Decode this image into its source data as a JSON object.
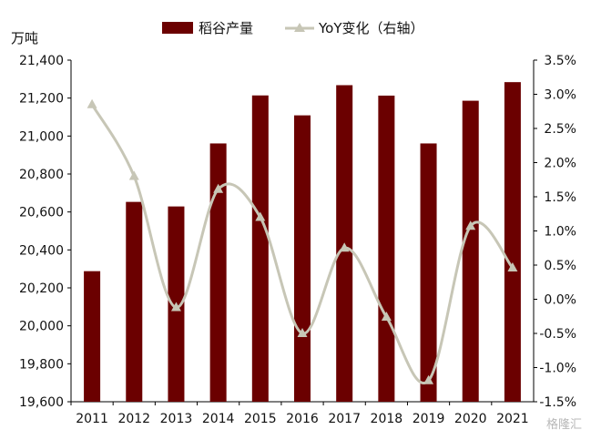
{
  "legend": {
    "bar_label": "稻谷产量",
    "line_label": "YoY变化（右轴）"
  },
  "left_axis_unit": "万吨",
  "watermark": "格隆汇",
  "colors": {
    "bar": "#6b0000",
    "line": "#c7c6b6",
    "axis": "#000000"
  },
  "chart_data": {
    "type": "bar",
    "categories": [
      "2011",
      "2012",
      "2013",
      "2014",
      "2015",
      "2016",
      "2017",
      "2018",
      "2019",
      "2020",
      "2021"
    ],
    "series": [
      {
        "name": "稻谷产量",
        "type": "bar",
        "axis": "left",
        "values": [
          20288,
          20653,
          20629,
          20961,
          21214,
          21109,
          21268,
          21213,
          20961,
          21186,
          21284
        ]
      },
      {
        "name": "YoY变化（右轴）",
        "type": "line",
        "axis": "right",
        "values": [
          2.85,
          1.8,
          -0.12,
          1.61,
          1.2,
          -0.5,
          0.75,
          -0.26,
          -1.19,
          1.07,
          0.46
        ]
      }
    ],
    "ylim": [
      19600,
      21400
    ],
    "y_ticks": [
      "19,600",
      "19,800",
      "20,000",
      "20,200",
      "20,400",
      "20,600",
      "20,800",
      "21,000",
      "21,200",
      "21,400"
    ],
    "y2lim": [
      -1.5,
      3.5
    ],
    "y2_ticks": [
      "-1.5%",
      "-1.0%",
      "-0.5%",
      "0.0%",
      "0.5%",
      "1.0%",
      "1.5%",
      "2.0%",
      "2.5%",
      "3.0%",
      "3.5%"
    ],
    "ylabel": "万吨",
    "legend_position": "top-center",
    "grid": false
  }
}
